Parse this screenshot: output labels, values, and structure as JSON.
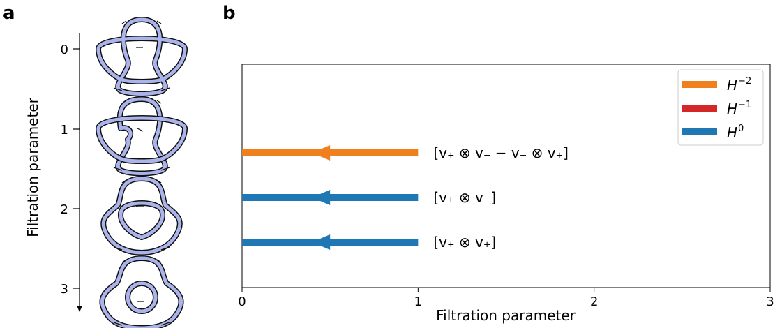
{
  "panels": {
    "a_label": "a",
    "b_label": "b"
  },
  "panel_a": {
    "ylabel": "Filtration parameter",
    "ticks": [
      "0",
      "1",
      "2",
      "3"
    ],
    "knot_fill": "#aab4ea",
    "knot_stroke": "#111111"
  },
  "chart_data": {
    "type": "barcode",
    "xlabel": "Filtration parameter",
    "xlim": [
      0,
      3
    ],
    "xticks": [
      "0",
      "1",
      "2",
      "3"
    ],
    "legend_position": "top-right",
    "legend": [
      {
        "base": "H",
        "sup": "−2",
        "color": "#f07f1e"
      },
      {
        "base": "H",
        "sup": "−1",
        "color": "#d62728"
      },
      {
        "base": "H",
        "sup": "0",
        "color": "#1f77b4"
      }
    ],
    "bars": [
      {
        "start": 0,
        "end": 1,
        "color": "#f07f1e",
        "label": "[v₊ ⊗ v₋ − v₋ ⊗ v₊]"
      },
      {
        "start": 0,
        "end": 1,
        "color": "#1f77b4",
        "label": "[v₊ ⊗ v₋]"
      },
      {
        "start": 0,
        "end": 1,
        "color": "#1f77b4",
        "label": "[v₊ ⊗ v₊]"
      }
    ]
  }
}
